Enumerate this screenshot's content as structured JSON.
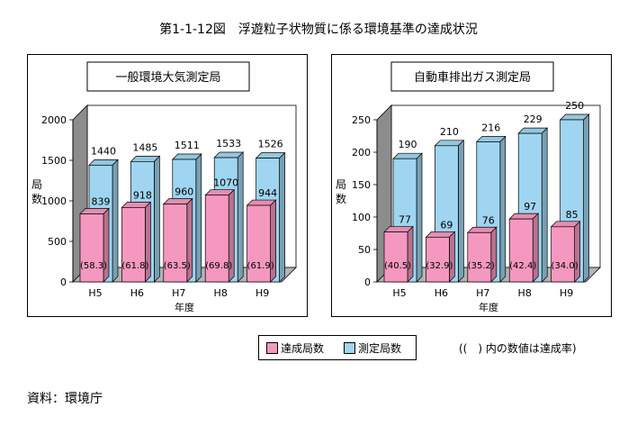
{
  "title": "第1-1-12図　浮遊粒子状物質に係る環境基準の達成状況",
  "legend": {
    "achieved_label": "達成局数",
    "measured_label": "測定局数"
  },
  "note": "((　) 内の数値は達成率)",
  "source": "資料：環境庁",
  "colors": {
    "achieved": "#f598bf",
    "measured": "#9fd5f0",
    "floor": "#b4b4b4",
    "wall": "#8c8c8c"
  },
  "chart_data": [
    {
      "type": "bar",
      "title": "一般環境大気測定局",
      "xlabel": "年度",
      "ylabel": "局数",
      "ylim": [
        0,
        2000
      ],
      "yticks": [
        "0",
        "500",
        "1000",
        "1500",
        "2000"
      ],
      "categories": [
        "H5",
        "H6",
        "H7",
        "H8",
        "H9"
      ],
      "series": [
        {
          "name": "測定局数",
          "values": [
            1440,
            1485,
            1511,
            1533,
            1526
          ]
        },
        {
          "name": "達成局数",
          "values": [
            839,
            918,
            960,
            1070,
            944
          ]
        }
      ],
      "rate_labels": [
        "(58.3)",
        "(61.8)",
        "(63.5)",
        "(69.8)",
        "(61.9)"
      ]
    },
    {
      "type": "bar",
      "title": "自動車排出ガス測定局",
      "xlabel": "年度",
      "ylabel": "局数",
      "ylim": [
        0,
        250
      ],
      "yticks": [
        "0",
        "50",
        "100",
        "150",
        "200",
        "250"
      ],
      "categories": [
        "H5",
        "H6",
        "H7",
        "H8",
        "H9"
      ],
      "series": [
        {
          "name": "測定局数",
          "values": [
            190,
            210,
            216,
            229,
            250
          ]
        },
        {
          "name": "達成局数",
          "values": [
            77,
            69,
            76,
            97,
            85
          ]
        }
      ],
      "rate_labels": [
        "(40.5)",
        "(32.9)",
        "(35.2)",
        "(42.4)",
        "(34.0)"
      ]
    }
  ]
}
